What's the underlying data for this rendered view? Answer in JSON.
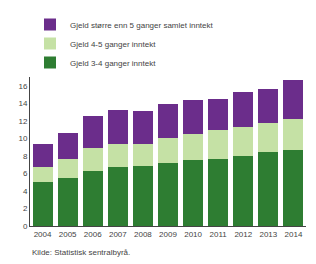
{
  "chart_data": {
    "type": "bar",
    "stacked": true,
    "categories": [
      "2004",
      "2005",
      "2006",
      "2007",
      "2008",
      "2009",
      "2010",
      "2011",
      "2012",
      "2013",
      "2014"
    ],
    "series": [
      {
        "name": "Gjeld 3-4 ganger inntekt",
        "color": "#2e7d32",
        "values": [
          5.0,
          5.5,
          6.3,
          6.7,
          6.8,
          7.2,
          7.5,
          7.7,
          8.0,
          8.4,
          8.7
        ]
      },
      {
        "name": "Gjeld 4-5 ganger inntekt",
        "color": "#c5e1a5",
        "values": [
          1.7,
          2.2,
          2.6,
          2.7,
          2.6,
          2.8,
          3.0,
          3.2,
          3.3,
          3.4,
          3.5
        ]
      },
      {
        "name": "Gjeld større enn 5 ganger samlet inntekt",
        "color": "#6b2d8b",
        "values": [
          2.6,
          2.9,
          3.6,
          3.8,
          3.7,
          3.9,
          3.9,
          3.6,
          4.0,
          3.8,
          4.5
        ]
      }
    ],
    "ylim": [
      0,
      17
    ],
    "yticks": [
      0,
      2,
      4,
      6,
      8,
      10,
      12,
      14,
      16
    ],
    "grid": false,
    "legend": "upper left",
    "annotations": [
      "Kilde: Statistisk sentralbyrå."
    ]
  }
}
